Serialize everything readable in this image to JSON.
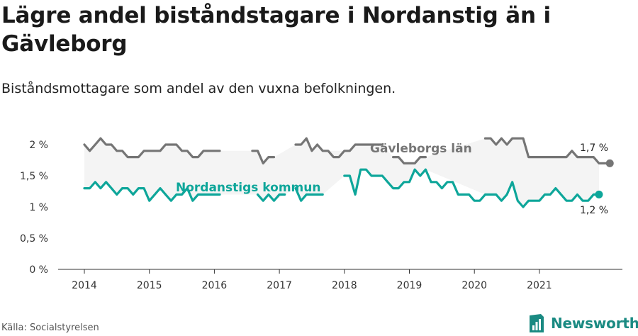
{
  "title": "Lägre andel biståndstagare i Nordanstig än i Gävleborg",
  "subtitle": "Biståndsmottagare som andel av den vuxna befolkningen.",
  "source": "Källa: Socialstyrelsen",
  "brand": "Newsworthy",
  "colors": {
    "gavleborg": "#757575",
    "nordanstig": "#0ea69a",
    "band": "#f4f4f4",
    "brand": "#1a8a82"
  },
  "chart_data": {
    "type": "line",
    "y_ticks": [
      "2 %",
      "1,5 %",
      "1 %",
      "0,5 %",
      "0 %"
    ],
    "y_tick_values": [
      2,
      1.5,
      1,
      0.5,
      0
    ],
    "x_ticks": [
      "2014",
      "2015",
      "2016",
      "2017",
      "2018",
      "2019",
      "2020",
      "2021"
    ],
    "ylim": [
      0,
      2
    ],
    "grid": false,
    "series": [
      {
        "name": "Gävleborgs län",
        "end_label": "1,7 %",
        "start": "2014-01",
        "values": [
          2.0,
          1.9,
          2.0,
          2.1,
          2.0,
          2.0,
          1.9,
          1.9,
          1.8,
          1.8,
          1.8,
          1.9,
          1.9,
          1.9,
          1.9,
          2.0,
          2.0,
          2.0,
          1.9,
          1.9,
          1.8,
          1.8,
          1.9,
          1.9,
          1.9,
          1.9,
          null,
          null,
          null,
          null,
          null,
          1.9,
          1.9,
          1.7,
          1.8,
          1.8,
          null,
          null,
          null,
          2.0,
          2.0,
          2.1,
          1.9,
          2.0,
          1.9,
          1.9,
          1.8,
          1.8,
          1.9,
          1.9,
          2.0,
          2.0,
          2.0,
          2.0,
          2.0,
          2.0,
          null,
          1.8,
          1.8,
          1.7,
          1.7,
          1.7,
          1.8,
          1.8,
          null,
          null,
          null,
          null,
          null,
          null,
          null,
          null,
          null,
          null,
          2.1,
          2.1,
          2.0,
          2.1,
          2.0,
          2.1,
          2.1,
          2.1,
          1.8,
          1.8,
          1.8,
          1.8,
          1.8,
          1.8,
          1.8,
          1.8,
          1.9,
          1.8,
          1.8,
          1.8,
          1.8,
          1.7,
          1.7,
          1.7
        ]
      },
      {
        "name": "Nordanstigs kommun",
        "end_label": "1,2 %",
        "start": "2014-01",
        "values": [
          1.3,
          1.3,
          1.4,
          1.3,
          1.4,
          1.3,
          1.2,
          1.3,
          1.3,
          1.2,
          1.3,
          1.3,
          1.1,
          1.2,
          1.3,
          1.2,
          1.1,
          1.2,
          1.2,
          1.3,
          1.1,
          1.2,
          1.2,
          1.2,
          1.2,
          1.2,
          null,
          1.1,
          null,
          null,
          null,
          null,
          1.2,
          1.1,
          1.2,
          1.1,
          1.2,
          1.2,
          null,
          1.3,
          1.1,
          1.2,
          1.2,
          1.2,
          1.2,
          null,
          null,
          null,
          1.5,
          1.5,
          1.2,
          1.6,
          1.6,
          1.5,
          1.5,
          1.5,
          1.4,
          1.3,
          1.3,
          1.4,
          1.4,
          1.6,
          1.5,
          1.6,
          1.4,
          1.4,
          1.3,
          1.4,
          1.4,
          1.2,
          1.2,
          1.2,
          1.1,
          1.1,
          1.2,
          1.2,
          1.2,
          1.1,
          1.2,
          1.4,
          1.1,
          1.0,
          1.1,
          1.1,
          1.1,
          1.2,
          1.2,
          1.3,
          1.2,
          1.1,
          1.1,
          1.2,
          1.1,
          1.1,
          1.2,
          1.2
        ]
      }
    ]
  }
}
